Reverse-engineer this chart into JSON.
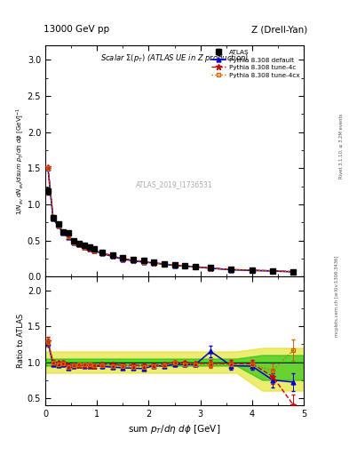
{
  "title_top_left": "13000 GeV pp",
  "title_top_right": "Z (Drell-Yan)",
  "plot_title": "Scalar Σ(p_{T}) (ATLAS UE in Z production)",
  "watermark": "ATLAS_2019_I1736531",
  "xlabel": "sum p_{T}/dη dϕ [GeV]",
  "ylabel_main": "1/N_{ev} dN_{ev}/dsum p_{T}/dη dϕ [GeV]$^{-1}$",
  "ylabel_ratio": "Ratio to ATLAS",
  "right_label_bottom": "mcplots.cern.ch [arXiv:1306.3436]",
  "right_label_top": "Rivet 3.1.10, ≥ 3.2M events",
  "xlim": [
    0,
    5.0
  ],
  "ylim_main": [
    0,
    3.2
  ],
  "ylim_ratio": [
    0.4,
    2.2
  ],
  "atlas_x": [
    0.05,
    0.15,
    0.25,
    0.35,
    0.45,
    0.55,
    0.65,
    0.75,
    0.85,
    0.95,
    1.1,
    1.3,
    1.5,
    1.7,
    1.9,
    2.1,
    2.3,
    2.5,
    2.7,
    2.9,
    3.2,
    3.6,
    4.0,
    4.4,
    4.8
  ],
  "atlas_y": [
    1.18,
    0.82,
    0.73,
    0.62,
    0.6,
    0.5,
    0.46,
    0.43,
    0.41,
    0.38,
    0.34,
    0.3,
    0.26,
    0.24,
    0.22,
    0.2,
    0.18,
    0.16,
    0.15,
    0.14,
    0.12,
    0.1,
    0.09,
    0.08,
    0.07
  ],
  "atlas_yerr": [
    0.05,
    0.03,
    0.02,
    0.02,
    0.02,
    0.02,
    0.01,
    0.01,
    0.01,
    0.01,
    0.01,
    0.01,
    0.01,
    0.01,
    0.01,
    0.01,
    0.01,
    0.01,
    0.01,
    0.01,
    0.01,
    0.01,
    0.01,
    0.01,
    0.01
  ],
  "pythia_default_x": [
    0.05,
    0.15,
    0.25,
    0.35,
    0.45,
    0.55,
    0.65,
    0.75,
    0.85,
    0.95,
    1.1,
    1.3,
    1.5,
    1.7,
    1.9,
    2.1,
    2.3,
    2.5,
    2.7,
    2.9,
    3.2,
    3.6,
    4.0,
    4.4,
    4.8
  ],
  "pythia_default_y": [
    1.5,
    0.8,
    0.7,
    0.6,
    0.55,
    0.47,
    0.44,
    0.41,
    0.39,
    0.36,
    0.32,
    0.28,
    0.24,
    0.22,
    0.2,
    0.19,
    0.17,
    0.155,
    0.145,
    0.135,
    0.115,
    0.095,
    0.085,
    0.078,
    0.065
  ],
  "pythia_4c_x": [
    0.05,
    0.15,
    0.25,
    0.35,
    0.45,
    0.55,
    0.65,
    0.75,
    0.85,
    0.95,
    1.1,
    1.3,
    1.5,
    1.7,
    1.9,
    2.1,
    2.3,
    2.5,
    2.7,
    2.9,
    3.2,
    3.6,
    4.0,
    4.4,
    4.8
  ],
  "pythia_4c_y": [
    1.52,
    0.82,
    0.72,
    0.62,
    0.57,
    0.48,
    0.44,
    0.41,
    0.39,
    0.36,
    0.33,
    0.29,
    0.25,
    0.23,
    0.21,
    0.19,
    0.175,
    0.16,
    0.148,
    0.138,
    0.118,
    0.098,
    0.088,
    0.08,
    0.068
  ],
  "pythia_4cx_x": [
    0.05,
    0.15,
    0.25,
    0.35,
    0.45,
    0.55,
    0.65,
    0.75,
    0.85,
    0.95,
    1.1,
    1.3,
    1.5,
    1.7,
    1.9,
    2.1,
    2.3,
    2.5,
    2.7,
    2.9,
    3.2,
    3.6,
    4.0,
    4.4,
    4.8
  ],
  "pythia_4cx_y": [
    1.51,
    0.81,
    0.71,
    0.61,
    0.56,
    0.475,
    0.445,
    0.415,
    0.395,
    0.365,
    0.325,
    0.285,
    0.245,
    0.225,
    0.205,
    0.19,
    0.172,
    0.158,
    0.146,
    0.136,
    0.116,
    0.097,
    0.087,
    0.08,
    0.068
  ],
  "ratio_default_y": [
    1.27,
    0.97,
    0.96,
    0.97,
    0.92,
    0.94,
    0.96,
    0.95,
    0.95,
    0.95,
    0.94,
    0.93,
    0.92,
    0.915,
    0.91,
    0.95,
    0.945,
    0.969,
    0.967,
    0.964,
    1.15,
    0.95,
    0.944,
    0.75,
    0.72
  ],
  "ratio_default_yerr": [
    0.05,
    0.03,
    0.02,
    0.02,
    0.02,
    0.02,
    0.02,
    0.02,
    0.02,
    0.02,
    0.02,
    0.02,
    0.02,
    0.02,
    0.02,
    0.02,
    0.02,
    0.02,
    0.02,
    0.02,
    0.08,
    0.05,
    0.05,
    0.1,
    0.12
  ],
  "ratio_4c_y": [
    1.29,
    1.0,
    0.99,
    1.0,
    0.955,
    0.96,
    0.956,
    0.955,
    0.951,
    0.947,
    0.97,
    0.967,
    0.962,
    0.958,
    0.955,
    0.951,
    0.97,
    1.0,
    0.99,
    0.986,
    0.983,
    0.98,
    0.978,
    0.8,
    0.4
  ],
  "ratio_4c_yerr": [
    0.06,
    0.03,
    0.02,
    0.02,
    0.02,
    0.02,
    0.02,
    0.02,
    0.02,
    0.02,
    0.02,
    0.02,
    0.02,
    0.02,
    0.02,
    0.02,
    0.02,
    0.02,
    0.02,
    0.02,
    0.05,
    0.05,
    0.05,
    0.1,
    0.15
  ],
  "ratio_4cx_y": [
    1.28,
    0.99,
    0.97,
    0.98,
    0.935,
    0.951,
    0.967,
    0.965,
    0.963,
    0.962,
    0.956,
    0.95,
    0.942,
    0.938,
    0.932,
    0.95,
    0.956,
    0.988,
    0.973,
    0.97,
    0.967,
    0.97,
    0.968,
    0.88,
    1.17
  ],
  "ratio_4cx_yerr": [
    0.06,
    0.03,
    0.02,
    0.02,
    0.02,
    0.02,
    0.02,
    0.02,
    0.02,
    0.02,
    0.02,
    0.02,
    0.02,
    0.02,
    0.02,
    0.02,
    0.02,
    0.02,
    0.02,
    0.02,
    0.05,
    0.05,
    0.05,
    0.1,
    0.15
  ],
  "green_band_x": [
    0.0,
    0.1,
    0.2,
    0.3,
    0.4,
    0.6,
    0.8,
    1.0,
    1.2,
    1.5,
    1.8,
    2.1,
    2.4,
    2.8,
    3.2,
    3.7,
    4.2,
    4.7,
    5.0
  ],
  "green_band_lo": [
    0.95,
    0.95,
    0.95,
    0.95,
    0.95,
    0.95,
    0.95,
    0.95,
    0.95,
    0.95,
    0.95,
    0.95,
    0.95,
    0.95,
    0.95,
    0.95,
    0.75,
    0.75,
    0.75
  ],
  "green_band_hi": [
    1.05,
    1.05,
    1.05,
    1.05,
    1.05,
    1.05,
    1.05,
    1.05,
    1.05,
    1.05,
    1.05,
    1.05,
    1.05,
    1.05,
    1.05,
    1.05,
    1.1,
    1.1,
    1.1
  ],
  "yellow_band_x": [
    0.0,
    0.1,
    0.2,
    0.3,
    0.4,
    0.6,
    0.8,
    1.0,
    1.2,
    1.5,
    1.8,
    2.1,
    2.4,
    2.8,
    3.2,
    3.7,
    4.2,
    4.7,
    5.0
  ],
  "yellow_band_lo": [
    0.85,
    0.85,
    0.85,
    0.85,
    0.85,
    0.85,
    0.85,
    0.85,
    0.85,
    0.85,
    0.85,
    0.85,
    0.85,
    0.85,
    0.85,
    0.85,
    0.6,
    0.6,
    0.6
  ],
  "yellow_band_hi": [
    1.15,
    1.15,
    1.15,
    1.15,
    1.15,
    1.15,
    1.15,
    1.15,
    1.15,
    1.15,
    1.15,
    1.15,
    1.15,
    1.15,
    1.15,
    1.15,
    1.2,
    1.2,
    1.2
  ],
  "color_atlas": "#000000",
  "color_default": "#0000cc",
  "color_4c": "#cc0000",
  "color_4cx": "#cc6600",
  "color_green": "#00bb00",
  "color_yellow": "#dddd00",
  "bg_color": "#ffffff"
}
